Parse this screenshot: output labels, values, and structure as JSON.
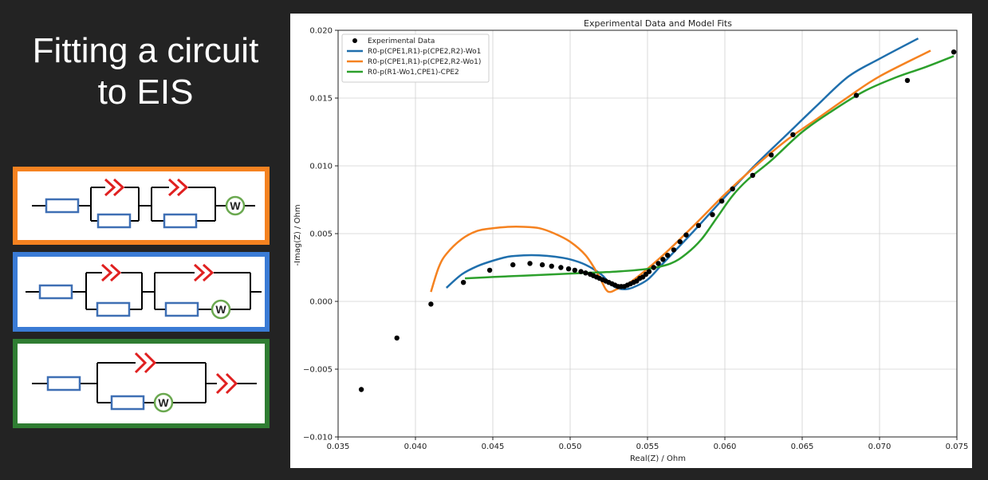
{
  "slide": {
    "title_line1": "Fitting a circuit",
    "title_line2": "to EIS"
  },
  "circuits": [
    {
      "border_color": "#f58220",
      "element_color": "#3e6fb4",
      "cpe_color": "#e02020",
      "warburg_color": "#6aa84f",
      "warburg_label": "W"
    },
    {
      "border_color": "#3a7bd5",
      "element_color": "#3e6fb4",
      "cpe_color": "#e02020",
      "warburg_color": "#6aa84f",
      "warburg_label": "W"
    },
    {
      "border_color": "#2f7d32",
      "element_color": "#3e6fb4",
      "cpe_color": "#e02020",
      "warburg_color": "#6aa84f",
      "warburg_label": "W"
    }
  ],
  "chart_data": {
    "type": "scatter",
    "title": "Experimental Data and Model Fits",
    "xlabel": "Real(Z) / Ohm",
    "ylabel": "-Imag(Z) / Ohm",
    "xlim": [
      0.035,
      0.075
    ],
    "ylim": [
      -0.01,
      0.02
    ],
    "xticks": [
      0.035,
      0.04,
      0.045,
      0.05,
      0.055,
      0.06,
      0.065,
      0.07,
      0.075
    ],
    "xtick_labels": [
      "0.035",
      "0.040",
      "0.045",
      "0.050",
      "0.055",
      "0.060",
      "0.065",
      "0.070",
      "0.075"
    ],
    "yticks": [
      -0.01,
      -0.005,
      0.0,
      0.005,
      0.01,
      0.015,
      0.02
    ],
    "ytick_labels": [
      "−0.010",
      "−0.005",
      "0.000",
      "0.005",
      "0.010",
      "0.015",
      "0.020"
    ],
    "grid": true,
    "legend_position": "top-left",
    "experimental": {
      "name": "Experimental Data",
      "color": "#000000",
      "points": [
        [
          0.0365,
          -0.0065
        ],
        [
          0.0388,
          -0.0027
        ],
        [
          0.041,
          -0.0002
        ],
        [
          0.0431,
          0.0014
        ],
        [
          0.0448,
          0.0023
        ],
        [
          0.0463,
          0.0027
        ],
        [
          0.0474,
          0.0028
        ],
        [
          0.0482,
          0.0027
        ],
        [
          0.0488,
          0.0026
        ],
        [
          0.0494,
          0.0025
        ],
        [
          0.0499,
          0.0024
        ],
        [
          0.0503,
          0.0023
        ],
        [
          0.0507,
          0.0022
        ],
        [
          0.051,
          0.0021
        ],
        [
          0.0513,
          0.002
        ],
        [
          0.0515,
          0.0019
        ],
        [
          0.0517,
          0.0018
        ],
        [
          0.0519,
          0.0017
        ],
        [
          0.0521,
          0.0016
        ],
        [
          0.0523,
          0.0015
        ],
        [
          0.0525,
          0.0014
        ],
        [
          0.0527,
          0.0013
        ],
        [
          0.0529,
          0.0012
        ],
        [
          0.0531,
          0.0011
        ],
        [
          0.0533,
          0.0011
        ],
        [
          0.0535,
          0.0011
        ],
        [
          0.0537,
          0.0012
        ],
        [
          0.0539,
          0.0013
        ],
        [
          0.0541,
          0.0014
        ],
        [
          0.0543,
          0.0015
        ],
        [
          0.0545,
          0.0017
        ],
        [
          0.0547,
          0.0018
        ],
        [
          0.0549,
          0.002
        ],
        [
          0.0551,
          0.0022
        ],
        [
          0.0554,
          0.0025
        ],
        [
          0.0557,
          0.0028
        ],
        [
          0.056,
          0.0031
        ],
        [
          0.0563,
          0.0034
        ],
        [
          0.0567,
          0.0038
        ],
        [
          0.0571,
          0.0044
        ],
        [
          0.0575,
          0.0049
        ],
        [
          0.0583,
          0.0056
        ],
        [
          0.0592,
          0.0064
        ],
        [
          0.0598,
          0.0074
        ],
        [
          0.0605,
          0.0083
        ],
        [
          0.0618,
          0.0093
        ],
        [
          0.063,
          0.0108
        ],
        [
          0.0644,
          0.0123
        ],
        [
          0.0685,
          0.0152
        ],
        [
          0.0718,
          0.0163
        ],
        [
          0.0748,
          0.0184
        ]
      ]
    },
    "series": [
      {
        "name": "R0-p(CPE1,R1)-p(CPE2,R2)-Wo1",
        "color": "#1f6fad",
        "points": [
          [
            0.042,
            0.001
          ],
          [
            0.043,
            0.002
          ],
          [
            0.044,
            0.0026
          ],
          [
            0.045,
            0.003
          ],
          [
            0.046,
            0.0033
          ],
          [
            0.047,
            0.0034
          ],
          [
            0.048,
            0.0034
          ],
          [
            0.049,
            0.0033
          ],
          [
            0.05,
            0.0031
          ],
          [
            0.051,
            0.0027
          ],
          [
            0.052,
            0.002
          ],
          [
            0.0525,
            0.0014
          ],
          [
            0.053,
            0.001
          ],
          [
            0.0535,
            0.0009
          ],
          [
            0.054,
            0.001
          ],
          [
            0.055,
            0.0016
          ],
          [
            0.056,
            0.0028
          ],
          [
            0.058,
            0.0052
          ],
          [
            0.06,
            0.0077
          ],
          [
            0.062,
            0.0101
          ],
          [
            0.064,
            0.0123
          ],
          [
            0.066,
            0.0145
          ],
          [
            0.068,
            0.0166
          ],
          [
            0.07,
            0.0179
          ],
          [
            0.0725,
            0.0194
          ]
        ]
      },
      {
        "name": "R0-p(CPE1,R1)-p(CPE2,R2-Wo1)",
        "color": "#f58220",
        "points": [
          [
            0.041,
            0.0007
          ],
          [
            0.0415,
            0.0025
          ],
          [
            0.042,
            0.0035
          ],
          [
            0.043,
            0.0046
          ],
          [
            0.044,
            0.0052
          ],
          [
            0.045,
            0.0054
          ],
          [
            0.046,
            0.0055
          ],
          [
            0.047,
            0.0055
          ],
          [
            0.048,
            0.0054
          ],
          [
            0.049,
            0.005
          ],
          [
            0.05,
            0.0044
          ],
          [
            0.051,
            0.0034
          ],
          [
            0.0518,
            0.002
          ],
          [
            0.0523,
            0.0009
          ],
          [
            0.0526,
            0.0007
          ],
          [
            0.053,
            0.0009
          ],
          [
            0.054,
            0.0015
          ],
          [
            0.056,
            0.0034
          ],
          [
            0.058,
            0.0056
          ],
          [
            0.06,
            0.0079
          ],
          [
            0.062,
            0.01
          ],
          [
            0.064,
            0.0119
          ],
          [
            0.066,
            0.0135
          ],
          [
            0.068,
            0.0151
          ],
          [
            0.07,
            0.0166
          ],
          [
            0.0733,
            0.0185
          ]
        ]
      },
      {
        "name": "R0-p(R1-Wo1,CPE1)-CPE2",
        "color": "#2ca02c",
        "points": [
          [
            0.0432,
            0.0017
          ],
          [
            0.045,
            0.0018
          ],
          [
            0.047,
            0.0019
          ],
          [
            0.049,
            0.002
          ],
          [
            0.051,
            0.0021
          ],
          [
            0.053,
            0.0022
          ],
          [
            0.055,
            0.0024
          ],
          [
            0.0565,
            0.0028
          ],
          [
            0.0575,
            0.0035
          ],
          [
            0.0585,
            0.0046
          ],
          [
            0.0595,
            0.0062
          ],
          [
            0.0605,
            0.0078
          ],
          [
            0.0615,
            0.009
          ],
          [
            0.063,
            0.0104
          ],
          [
            0.065,
            0.0125
          ],
          [
            0.067,
            0.0141
          ],
          [
            0.069,
            0.0155
          ],
          [
            0.071,
            0.0165
          ],
          [
            0.073,
            0.0173
          ],
          [
            0.0748,
            0.0181
          ]
        ]
      }
    ]
  }
}
